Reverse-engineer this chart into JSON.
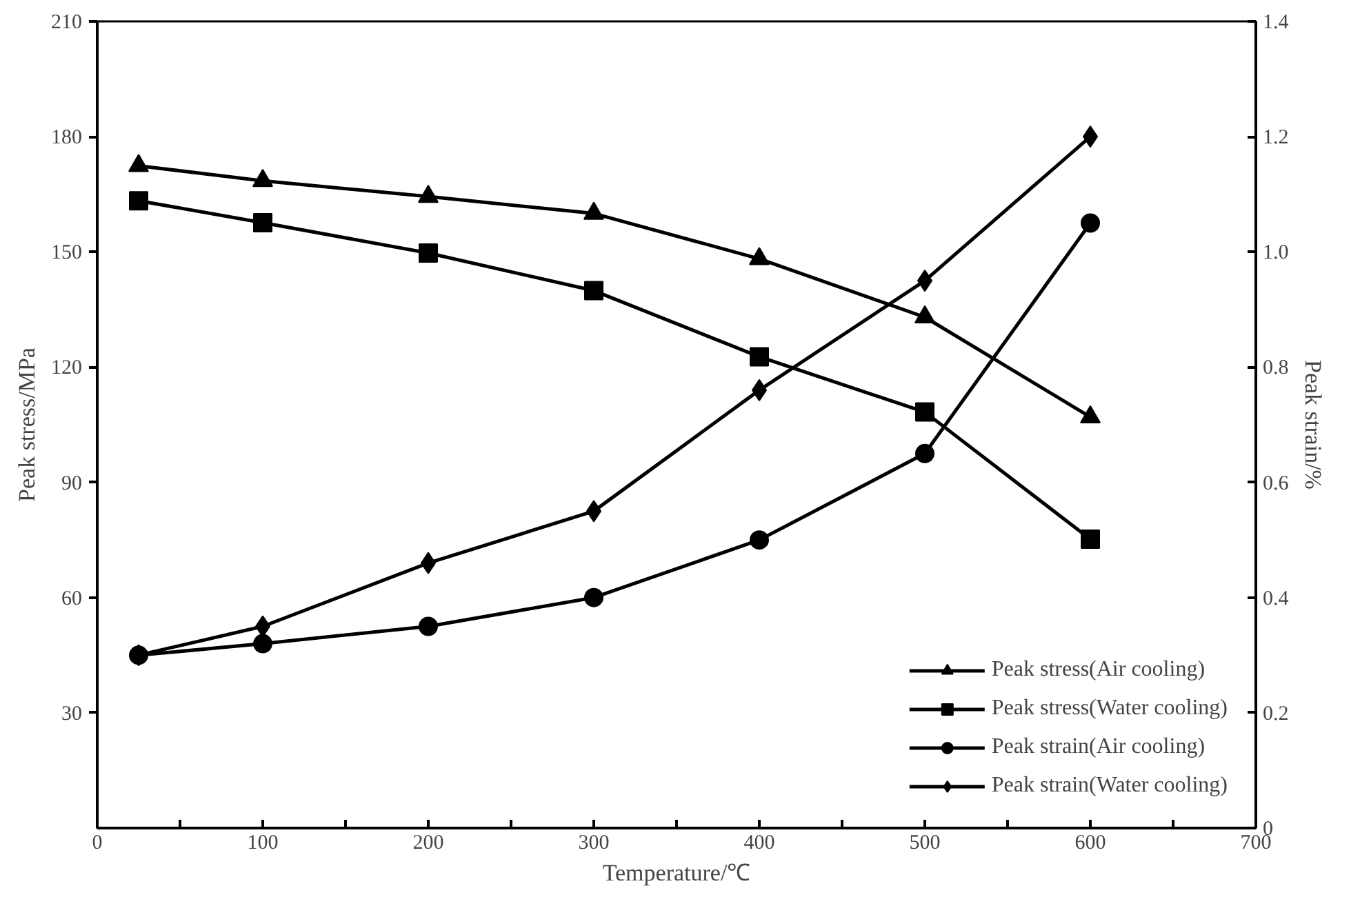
{
  "chart_data": {
    "type": "line",
    "xlabel": "Temperature/℃",
    "ylabel": "Peak stress/MPa",
    "y2label": "Peak strain/%",
    "x": [
      25,
      100,
      200,
      300,
      400,
      500,
      600
    ],
    "xlim": [
      0,
      700
    ],
    "xticks": [
      0,
      {
        "value": 50,
        "label": null
      },
      100,
      {
        "value": 150,
        "label": null
      },
      200,
      {
        "value": 250,
        "label": null
      },
      300,
      {
        "value": 350,
        "label": null
      },
      400,
      {
        "value": 450,
        "label": null
      },
      500,
      {
        "value": 550,
        "label": null
      },
      600,
      {
        "value": 650,
        "label": null
      },
      700
    ],
    "ylim": [
      0,
      210
    ],
    "yticks": [
      30,
      60,
      90,
      120,
      150,
      180,
      210
    ],
    "y2lim": [
      0,
      1.4
    ],
    "y2ticks": [
      0,
      0.2,
      0.4,
      0.6,
      0.8,
      {
        "value": 1.0,
        "label": "1.0"
      },
      1.2,
      1.4
    ],
    "grid": false,
    "legend": "bottom right",
    "line_style": "solid",
    "series": [
      {
        "name": "Peak stress(Air cooling)",
        "color": "#000000",
        "marker": "triangle",
        "values": [
          172.4,
          168.5,
          164.4,
          160.0,
          148.2,
          133.0,
          107.0
        ]
      },
      {
        "name": "Peak stress(Water cooling)",
        "color": "#000000",
        "marker": "square",
        "values": [
          163.3,
          157.6,
          149.7,
          139.9,
          122.7,
          108.3,
          75.2
        ]
      },
      {
        "name": "Peak strain(Air cooling)",
        "color": "#000000",
        "marker": "circle",
        "axis": "y2",
        "values": [
          0.3,
          0.32,
          0.35,
          0.4,
          0.5,
          0.65,
          1.05
        ]
      },
      {
        "name": "Peak strain(Water cooling)",
        "color": "#000000",
        "marker": "diamond",
        "axis": "y2",
        "values": [
          0.3,
          0.35,
          0.46,
          0.55,
          0.76,
          0.95,
          1.2
        ]
      }
    ]
  }
}
